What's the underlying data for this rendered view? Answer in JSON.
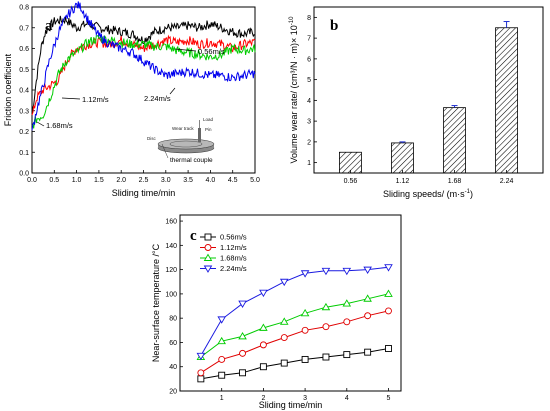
{
  "chart_data": [
    {
      "panel_label": "a",
      "type": "line",
      "xlabel": "Sliding time/min",
      "ylabel": "Friction coefficient",
      "xlim": [
        0,
        5
      ],
      "ylim": [
        0,
        0.8
      ],
      "xticks": [
        "0.0",
        "0.5",
        "1.0",
        "1.5",
        "2.0",
        "2.5",
        "3.0",
        "3.5",
        "4.0",
        "4.5",
        "5.0"
      ],
      "yticks": [
        "0.0",
        "0.1",
        "0.2",
        "0.3",
        "0.4",
        "0.5",
        "0.6",
        "0.7",
        "0.8"
      ],
      "series": [
        {
          "name": "0.56m/s",
          "color": "#000000",
          "points": [
            [
              0.0,
              0.28
            ],
            [
              0.1,
              0.45
            ],
            [
              0.2,
              0.6
            ],
            [
              0.3,
              0.68
            ],
            [
              0.5,
              0.73
            ],
            [
              0.75,
              0.74
            ],
            [
              1.0,
              0.7
            ],
            [
              1.25,
              0.72
            ],
            [
              1.5,
              0.7
            ],
            [
              1.75,
              0.69
            ],
            [
              2.0,
              0.68
            ],
            [
              2.25,
              0.67
            ],
            [
              2.5,
              0.64
            ],
            [
              2.75,
              0.68
            ],
            [
              3.0,
              0.7
            ],
            [
              3.25,
              0.7
            ],
            [
              3.5,
              0.71
            ],
            [
              3.75,
              0.7
            ],
            [
              4.0,
              0.72
            ],
            [
              4.25,
              0.7
            ],
            [
              4.5,
              0.68
            ],
            [
              4.75,
              0.67
            ],
            [
              5.0,
              0.68
            ]
          ]
        },
        {
          "name": "1.12m/s",
          "color": "#ff0000",
          "points": [
            [
              0.0,
              0.27
            ],
            [
              0.1,
              0.36
            ],
            [
              0.25,
              0.4
            ],
            [
              0.4,
              0.42
            ],
            [
              0.6,
              0.45
            ],
            [
              0.8,
              0.55
            ],
            [
              1.0,
              0.6
            ],
            [
              1.25,
              0.62
            ],
            [
              1.5,
              0.63
            ],
            [
              1.75,
              0.62
            ],
            [
              2.0,
              0.64
            ],
            [
              2.25,
              0.62
            ],
            [
              2.5,
              0.6
            ],
            [
              2.75,
              0.62
            ],
            [
              3.0,
              0.64
            ],
            [
              3.25,
              0.63
            ],
            [
              3.5,
              0.64
            ],
            [
              3.75,
              0.62
            ],
            [
              4.0,
              0.63
            ],
            [
              4.25,
              0.62
            ],
            [
              4.5,
              0.6
            ],
            [
              4.75,
              0.62
            ],
            [
              5.0,
              0.63
            ]
          ]
        },
        {
          "name": "1.68m/s",
          "color": "#00cc00",
          "points": [
            [
              0.0,
              0.22
            ],
            [
              0.1,
              0.26
            ],
            [
              0.25,
              0.28
            ],
            [
              0.4,
              0.36
            ],
            [
              0.6,
              0.48
            ],
            [
              0.8,
              0.55
            ],
            [
              1.0,
              0.58
            ],
            [
              1.25,
              0.63
            ],
            [
              1.5,
              0.65
            ],
            [
              1.75,
              0.64
            ],
            [
              2.0,
              0.63
            ],
            [
              2.25,
              0.62
            ],
            [
              2.5,
              0.62
            ],
            [
              2.75,
              0.61
            ],
            [
              3.0,
              0.61
            ],
            [
              3.25,
              0.59
            ],
            [
              3.5,
              0.58
            ],
            [
              3.75,
              0.57
            ],
            [
              4.0,
              0.56
            ],
            [
              4.25,
              0.57
            ],
            [
              4.5,
              0.6
            ],
            [
              4.75,
              0.59
            ],
            [
              5.0,
              0.6
            ]
          ]
        },
        {
          "name": "2.24m/s",
          "color": "#0000ee",
          "points": [
            [
              0.0,
              0.2
            ],
            [
              0.1,
              0.3
            ],
            [
              0.25,
              0.42
            ],
            [
              0.4,
              0.55
            ],
            [
              0.6,
              0.68
            ],
            [
              0.8,
              0.76
            ],
            [
              1.0,
              0.81
            ],
            [
              1.1,
              0.8
            ],
            [
              1.25,
              0.74
            ],
            [
              1.5,
              0.66
            ],
            [
              1.75,
              0.62
            ],
            [
              2.0,
              0.6
            ],
            [
              2.25,
              0.58
            ],
            [
              2.5,
              0.54
            ],
            [
              2.75,
              0.5
            ],
            [
              3.0,
              0.47
            ],
            [
              3.25,
              0.48
            ],
            [
              3.5,
              0.49
            ],
            [
              3.75,
              0.48
            ],
            [
              4.0,
              0.47
            ],
            [
              4.25,
              0.47
            ],
            [
              4.5,
              0.46
            ],
            [
              4.75,
              0.47
            ],
            [
              5.0,
              0.48
            ]
          ]
        }
      ],
      "annotations": [
        "0.56m/s",
        "1.12m/s",
        "1.68m/s",
        "2.24m/s"
      ],
      "inset_labels": [
        "Wear track",
        "Load",
        "Pin",
        "Disc",
        "thermal couple"
      ]
    },
    {
      "panel_label": "b",
      "type": "bar",
      "xlabel": "Sliding speeds/ (m·s",
      "xlabel_sup": "-1",
      "xlabel_end": ")",
      "ylabel": "Volume  wear  rate/ (cm³/N · m)× 10",
      "ylabel_sup": "-10",
      "categories": [
        "0.56",
        "1.12",
        "1.68",
        "2.24"
      ],
      "values": [
        1.5,
        1.95,
        3.65,
        7.5
      ],
      "errors": [
        0.0,
        0.05,
        0.1,
        0.3
      ],
      "ylim": [
        0.5,
        8.5
      ],
      "yticks": [
        "1",
        "2",
        "3",
        "4",
        "5",
        "6",
        "7",
        "8"
      ],
      "error_color": "#1f2fd0"
    },
    {
      "panel_label": "c",
      "type": "line",
      "xlabel": "Sliding time/min",
      "ylabel": "Near-surface temperature /°C",
      "xlim": [
        0,
        5.3
      ],
      "ylim": [
        20,
        165
      ],
      "xticks": [
        "1",
        "2",
        "3",
        "4",
        "5"
      ],
      "yticks": [
        "20",
        "40",
        "60",
        "80",
        "100",
        "120",
        "140",
        "160"
      ],
      "x": [
        0.5,
        1.0,
        1.5,
        2.0,
        2.5,
        3.0,
        3.5,
        4.0,
        4.5,
        5.0
      ],
      "series": [
        {
          "name": "0.56m/s",
          "color": "#000000",
          "marker": "square",
          "values": [
            30,
            33,
            35,
            40,
            43,
            46,
            48,
            50,
            52,
            55
          ]
        },
        {
          "name": "1.12m/s",
          "color": "#e00000",
          "marker": "circle",
          "values": [
            35,
            46,
            51,
            58,
            64,
            70,
            73,
            77,
            82,
            86
          ]
        },
        {
          "name": "1.68m/s",
          "color": "#00cc00",
          "marker": "triangle-up",
          "values": [
            48,
            61,
            65,
            72,
            77,
            84,
            89,
            92,
            96,
            100
          ]
        },
        {
          "name": "2.24m/s",
          "color": "#1a1ae0",
          "marker": "triangle-down",
          "values": [
            49,
            79,
            92,
            101,
            110,
            117,
            119,
            119,
            120,
            122
          ]
        }
      ]
    }
  ]
}
